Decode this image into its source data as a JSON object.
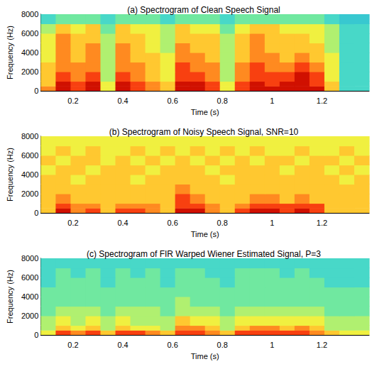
{
  "chart_data": [
    {
      "type": "heatmap",
      "title": "(a) Spectrogram of Clean Speech Signal",
      "x_label": "Time (s)",
      "y_label": "Frequency (Hz)",
      "xlim": [
        0.07,
        1.39
      ],
      "xticks": [
        0.2,
        0.4,
        0.6,
        0.8,
        1,
        1.2
      ],
      "ylim": [
        0,
        8000
      ],
      "yticks": [
        0,
        2000,
        4000,
        6000,
        8000
      ],
      "grid": false,
      "time_edges": [
        0.07,
        0.13,
        0.19,
        0.25,
        0.31,
        0.37,
        0.43,
        0.49,
        0.55,
        0.61,
        0.67,
        0.73,
        0.79,
        0.85,
        0.91,
        0.97,
        1.03,
        1.09,
        1.15,
        1.21,
        1.27,
        1.33,
        1.39
      ],
      "freq_edges": [
        0,
        500,
        1000,
        2000,
        3000,
        4000,
        5000,
        6000,
        7000,
        8000
      ],
      "zlim": [
        0,
        10
      ],
      "cells": [
        [
          7,
          9,
          8,
          9,
          5,
          9,
          8,
          7,
          6,
          9,
          9,
          8,
          5,
          8,
          9,
          9,
          9,
          9,
          9,
          6,
          2,
          2
        ],
        [
          6,
          9,
          8,
          9,
          5,
          9,
          8,
          7,
          6,
          9,
          9,
          8,
          5,
          8,
          9,
          8,
          9,
          9,
          8,
          6,
          2,
          2
        ],
        [
          6,
          8,
          7,
          8,
          4,
          8,
          7,
          6,
          5,
          8,
          8,
          7,
          4,
          7,
          8,
          8,
          8,
          9,
          8,
          5,
          2,
          2
        ],
        [
          6,
          7,
          7,
          7,
          4,
          7,
          7,
          6,
          5,
          8,
          7,
          7,
          4,
          7,
          8,
          7,
          7,
          8,
          7,
          5,
          2,
          2
        ],
        [
          5,
          7,
          6,
          7,
          4,
          7,
          6,
          6,
          5,
          7,
          7,
          6,
          4,
          6,
          7,
          7,
          6,
          7,
          6,
          5,
          2,
          2
        ],
        [
          5,
          7,
          6,
          7,
          4,
          7,
          6,
          5,
          4,
          7,
          6,
          6,
          4,
          6,
          7,
          6,
          6,
          6,
          6,
          4,
          2,
          2
        ],
        [
          5,
          7,
          6,
          6,
          4,
          6,
          6,
          5,
          4,
          6,
          6,
          6,
          4,
          6,
          7,
          6,
          6,
          6,
          5,
          4,
          2,
          2
        ],
        [
          4,
          6,
          5,
          6,
          3,
          6,
          5,
          5,
          4,
          6,
          5,
          5,
          3,
          5,
          6,
          6,
          5,
          5,
          5,
          4,
          2,
          2
        ],
        [
          2,
          3,
          3,
          3,
          2,
          3,
          3,
          3,
          2,
          3,
          3,
          3,
          2,
          3,
          3,
          3,
          3,
          3,
          3,
          2,
          1,
          1
        ]
      ]
    },
    {
      "type": "heatmap",
      "title": "(b) Spectrogram of Noisy Speech Signal, SNR=10",
      "x_label": "Time (s)",
      "y_label": "Frequency (Hz)",
      "xlim": [
        0.07,
        1.39
      ],
      "xticks": [
        0.2,
        0.4,
        0.6,
        0.8,
        1,
        1.2
      ],
      "ylim": [
        0,
        8000
      ],
      "yticks": [
        0,
        2000,
        4000,
        6000,
        8000
      ],
      "grid": false,
      "time_edges": [
        0.07,
        0.13,
        0.19,
        0.25,
        0.31,
        0.37,
        0.43,
        0.49,
        0.55,
        0.61,
        0.67,
        0.73,
        0.79,
        0.85,
        0.91,
        0.97,
        1.03,
        1.09,
        1.15,
        1.21,
        1.27,
        1.33,
        1.39
      ],
      "freq_edges": [
        0,
        500,
        1000,
        2000,
        3000,
        4000,
        5000,
        6000,
        7000,
        8000
      ],
      "zlim": [
        0,
        10
      ],
      "cells": [
        [
          6,
          9,
          7,
          8,
          6,
          8,
          8,
          7,
          6,
          9,
          9,
          7,
          6,
          8,
          9,
          9,
          8,
          9,
          8,
          6,
          6,
          6
        ],
        [
          6,
          8,
          7,
          7,
          6,
          7,
          7,
          7,
          6,
          8,
          8,
          7,
          6,
          7,
          8,
          8,
          8,
          8,
          8,
          6,
          6,
          6
        ],
        [
          6,
          7,
          6,
          6,
          6,
          6,
          6,
          6,
          6,
          8,
          7,
          6,
          6,
          6,
          7,
          7,
          6,
          7,
          6,
          6,
          6,
          6
        ],
        [
          6,
          6,
          6,
          6,
          6,
          6,
          6,
          6,
          6,
          7,
          6,
          6,
          6,
          6,
          6,
          6,
          6,
          6,
          6,
          6,
          6,
          6
        ],
        [
          6,
          6,
          5,
          6,
          6,
          6,
          5,
          6,
          6,
          6,
          6,
          6,
          5,
          6,
          6,
          6,
          6,
          6,
          6,
          6,
          5,
          6
        ],
        [
          5,
          6,
          6,
          5,
          6,
          6,
          6,
          5,
          6,
          6,
          6,
          5,
          6,
          6,
          6,
          6,
          5,
          6,
          6,
          5,
          6,
          5
        ],
        [
          6,
          5,
          6,
          6,
          5,
          6,
          5,
          6,
          5,
          6,
          5,
          6,
          5,
          6,
          5,
          6,
          6,
          5,
          6,
          6,
          5,
          6
        ],
        [
          5,
          6,
          5,
          6,
          5,
          5,
          6,
          5,
          6,
          5,
          6,
          5,
          6,
          5,
          6,
          5,
          5,
          6,
          5,
          5,
          6,
          5
        ],
        [
          5,
          5,
          5,
          5,
          5,
          5,
          5,
          5,
          5,
          5,
          5,
          5,
          5,
          5,
          5,
          5,
          5,
          5,
          5,
          5,
          5,
          5
        ]
      ]
    },
    {
      "type": "heatmap",
      "title": "(c) Spectrogram of FIR Warped Wiener Estimated Signal, P=3",
      "x_label": "Time (s)",
      "y_label": "Frequency (Hz)",
      "xlim": [
        0.07,
        1.39
      ],
      "xticks": [
        0.2,
        0.4,
        0.6,
        0.8,
        1,
        1.2
      ],
      "ylim": [
        0,
        8000
      ],
      "yticks": [
        0,
        2000,
        4000,
        6000,
        8000
      ],
      "grid": false,
      "time_edges": [
        0.07,
        0.13,
        0.19,
        0.25,
        0.31,
        0.37,
        0.43,
        0.49,
        0.55,
        0.61,
        0.67,
        0.73,
        0.79,
        0.85,
        0.91,
        0.97,
        1.03,
        1.09,
        1.15,
        1.21,
        1.27,
        1.33,
        1.39
      ],
      "freq_edges": [
        0,
        500,
        1000,
        2000,
        3000,
        4000,
        5000,
        6000,
        7000,
        8000
      ],
      "zlim": [
        0,
        10
      ],
      "cells": [
        [
          5,
          8,
          7,
          8,
          6,
          8,
          8,
          7,
          6,
          8,
          8,
          7,
          6,
          8,
          8,
          8,
          8,
          8,
          7,
          6,
          5,
          5
        ],
        [
          4,
          6,
          5,
          6,
          4,
          6,
          5,
          5,
          4,
          7,
          7,
          6,
          4,
          6,
          7,
          7,
          6,
          7,
          6,
          4,
          4,
          4
        ],
        [
          4,
          5,
          4,
          5,
          4,
          5,
          4,
          4,
          4,
          6,
          5,
          5,
          4,
          5,
          5,
          5,
          5,
          5,
          5,
          4,
          4,
          4
        ],
        [
          3,
          4,
          4,
          4,
          3,
          4,
          4,
          4,
          3,
          4,
          4,
          4,
          3,
          4,
          4,
          4,
          4,
          4,
          4,
          3,
          3,
          3
        ],
        [
          3,
          3,
          3,
          3,
          3,
          3,
          3,
          3,
          3,
          4,
          3,
          3,
          3,
          3,
          3,
          3,
          3,
          3,
          3,
          3,
          3,
          3
        ],
        [
          3,
          3,
          3,
          3,
          3,
          3,
          3,
          3,
          3,
          3,
          3,
          3,
          3,
          3,
          3,
          3,
          3,
          3,
          3,
          3,
          3,
          3
        ],
        [
          2,
          3,
          3,
          3,
          2,
          3,
          3,
          3,
          2,
          3,
          3,
          3,
          2,
          3,
          3,
          3,
          3,
          3,
          3,
          2,
          2,
          2
        ],
        [
          2,
          3,
          2,
          3,
          2,
          3,
          2,
          3,
          2,
          3,
          3,
          2,
          2,
          3,
          3,
          3,
          2,
          3,
          2,
          2,
          2,
          2
        ],
        [
          2,
          2,
          2,
          2,
          2,
          2,
          2,
          2,
          2,
          2,
          2,
          2,
          2,
          2,
          2,
          2,
          2,
          2,
          2,
          2,
          2,
          2
        ]
      ]
    }
  ]
}
